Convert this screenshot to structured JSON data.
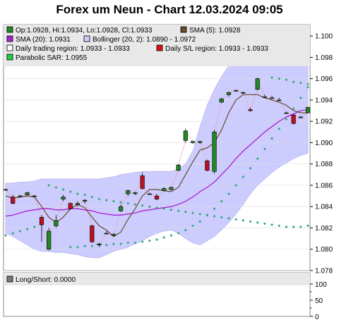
{
  "title": "Forex um Neun - Chart 12.03.2024 09:05",
  "legend": {
    "ohlc": "Op:1.0928, Hi:1.0934, Lo:1.0928, Cl:1.0933",
    "sma5": "SMA (5): 1.0928",
    "sma20": "SMA (20): 1.0931",
    "bollinger": "Bollinger (20, 2): 1.0890 - 1.0972",
    "daily_trading_region": "Daily trading region: 1.0933 - 1.0933",
    "daily_sl_region": "Daily S/L region: 1.0933 - 1.0933",
    "psar": "Parabolic SAR: 1.0955"
  },
  "colors": {
    "bull": "#228822",
    "bear": "#bb1122",
    "sma5": "#6b4a2e",
    "sma20": "#aa22cc",
    "bollinger_fill": "#ccccff",
    "psar": "#33aa77",
    "link": "#f0a0b0"
  },
  "lower_panel": {
    "legend": "Long/Short: 0.0000",
    "ticks": [
      "100",
      "50",
      "0"
    ]
  },
  "chart_data": {
    "type": "candlestick",
    "title": "Forex um Neun - Chart 12.03.2024 09:05",
    "ylim": [
      1.078,
      1.101
    ],
    "yticks": [
      "1.078",
      "1.080",
      "1.082",
      "1.084",
      "1.086",
      "1.088",
      "1.090",
      "1.092",
      "1.094",
      "1.096",
      "1.098",
      "1.100"
    ],
    "candles": [
      {
        "o": 1.0856,
        "h": 1.0857,
        "l": 1.0855,
        "c": 1.0856
      },
      {
        "o": 1.0849,
        "h": 1.0851,
        "l": 1.0842,
        "c": 1.0843
      },
      {
        "o": 1.0849,
        "h": 1.0851,
        "l": 1.0849,
        "c": 1.085
      },
      {
        "o": 1.0851,
        "h": 1.0854,
        "l": 1.085,
        "c": 1.0853
      },
      {
        "o": 1.085,
        "h": 1.0851,
        "l": 1.0849,
        "c": 1.085
      },
      {
        "o": 1.083,
        "h": 1.0832,
        "l": 1.0807,
        "c": 1.0823
      },
      {
        "o": 1.08,
        "h": 1.082,
        "l": 1.0799,
        "c": 1.0817
      },
      {
        "o": 1.0822,
        "h": 1.0832,
        "l": 1.082,
        "c": 1.0827
      },
      {
        "o": 1.0847,
        "h": 1.0851,
        "l": 1.0845,
        "c": 1.0849
      },
      {
        "o": 1.0843,
        "h": 1.0844,
        "l": 1.0837,
        "c": 1.0838
      },
      {
        "o": 1.0842,
        "h": 1.0845,
        "l": 1.084,
        "c": 1.0843
      },
      {
        "o": 1.0845,
        "h": 1.0847,
        "l": 1.0843,
        "c": 1.0846
      },
      {
        "o": 1.0822,
        "h": 1.0823,
        "l": 1.0806,
        "c": 1.0807
      },
      {
        "o": 1.0804,
        "h": 1.0806,
        "l": 1.0802,
        "c": 1.0805
      },
      {
        "o": 1.0815,
        "h": 1.0817,
        "l": 1.0814,
        "c": 1.0815
      },
      {
        "o": 1.0813,
        "h": 1.0815,
        "l": 1.0812,
        "c": 1.0814
      },
      {
        "o": 1.0836,
        "h": 1.0842,
        "l": 1.0835,
        "c": 1.084
      },
      {
        "o": 1.0852,
        "h": 1.0856,
        "l": 1.085,
        "c": 1.0855
      },
      {
        "o": 1.0852,
        "h": 1.0854,
        "l": 1.0851,
        "c": 1.0853
      },
      {
        "o": 1.0869,
        "h": 1.0872,
        "l": 1.0856,
        "c": 1.0857
      },
      {
        "o": 1.0852,
        "h": 1.0853,
        "l": 1.0851,
        "c": 1.0852
      },
      {
        "o": 1.085,
        "h": 1.0852,
        "l": 1.0846,
        "c": 1.0847
      },
      {
        "o": 1.0855,
        "h": 1.0858,
        "l": 1.0854,
        "c": 1.0857
      },
      {
        "o": 1.0856,
        "h": 1.0859,
        "l": 1.0855,
        "c": 1.0858
      },
      {
        "o": 1.0874,
        "h": 1.088,
        "l": 1.0873,
        "c": 1.0879
      },
      {
        "o": 1.0902,
        "h": 1.0913,
        "l": 1.09,
        "c": 1.0911
      },
      {
        "o": 1.09,
        "h": 1.0902,
        "l": 1.0899,
        "c": 1.0901
      },
      {
        "o": 1.09,
        "h": 1.0902,
        "l": 1.0899,
        "c": 1.0901
      },
      {
        "o": 1.0883,
        "h": 1.0884,
        "l": 1.0873,
        "c": 1.0874
      },
      {
        "o": 1.0873,
        "h": 1.0912,
        "l": 1.0871,
        "c": 1.091
      },
      {
        "o": 1.0938,
        "h": 1.0942,
        "l": 1.0937,
        "c": 1.0941
      },
      {
        "o": 1.0945,
        "h": 1.0948,
        "l": 1.0943,
        "c": 1.0947
      },
      {
        "o": 1.0949,
        "h": 1.095,
        "l": 1.0948,
        "c": 1.0949
      },
      {
        "o": 1.0947,
        "h": 1.0948,
        "l": 1.0946,
        "c": 1.0947
      },
      {
        "o": 1.0931,
        "h": 1.0933,
        "l": 1.0929,
        "c": 1.093
      },
      {
        "o": 1.095,
        "h": 1.0961,
        "l": 1.0949,
        "c": 1.096
      },
      {
        "o": 1.0943,
        "h": 1.0945,
        "l": 1.0942,
        "c": 1.0943
      },
      {
        "o": 1.0942,
        "h": 1.0944,
        "l": 1.0941,
        "c": 1.0942
      },
      {
        "o": 1.094,
        "h": 1.0942,
        "l": 1.0939,
        "c": 1.094
      },
      {
        "o": 1.0928,
        "h": 1.0929,
        "l": 1.0927,
        "c": 1.0928
      },
      {
        "o": 1.0926,
        "h": 1.0927,
        "l": 1.0917,
        "c": 1.0918
      },
      {
        "o": 1.0924,
        "h": 1.0925,
        "l": 1.0923,
        "c": 1.0924
      },
      {
        "o": 1.0928,
        "h": 1.0934,
        "l": 1.0928,
        "c": 1.0933
      }
    ],
    "sma5": [
      1.085,
      1.0848,
      1.0849,
      1.085,
      1.0849,
      1.084,
      1.083,
      1.0825,
      1.083,
      1.0838,
      1.0842,
      1.0839,
      1.083,
      1.0822,
      1.0818,
      1.0812,
      1.0816,
      1.0828,
      1.0838,
      1.085,
      1.0856,
      1.0856,
      1.0855,
      1.0854,
      1.0858,
      1.087,
      1.0882,
      1.0893,
      1.0895,
      1.09,
      1.0912,
      1.0928,
      1.094,
      1.0945,
      1.0945,
      1.0945,
      1.0942,
      1.094,
      1.0938,
      1.0935,
      1.093,
      1.0928,
      1.0928
    ],
    "sma20": [
      1.0831,
      1.0832,
      1.0834,
      1.0836,
      1.0837,
      1.0838,
      1.0838,
      1.0837,
      1.0837,
      1.0838,
      1.0838,
      1.0837,
      1.0836,
      1.0834,
      1.0833,
      1.0832,
      1.0832,
      1.0833,
      1.0834,
      1.0836,
      1.0837,
      1.0838,
      1.0839,
      1.084,
      1.0842,
      1.0845,
      1.0849,
      1.0854,
      1.0858,
      1.0863,
      1.087,
      1.0877,
      1.0885,
      1.0892,
      1.0898,
      1.0904,
      1.091,
      1.0915,
      1.092,
      1.0924,
      1.0927,
      1.093,
      1.0931
    ],
    "bollinger_upper": [
      1.0862,
      1.0862,
      1.0863,
      1.0863,
      1.0864,
      1.0866,
      1.0866,
      1.0866,
      1.0866,
      1.0866,
      1.0866,
      1.0866,
      1.0866,
      1.0866,
      1.0867,
      1.0868,
      1.087,
      1.0871,
      1.0872,
      1.0873,
      1.0873,
      1.0873,
      1.0873,
      1.0873,
      1.0875,
      1.088,
      1.0892,
      1.0915,
      1.0935,
      1.095,
      1.0962,
      1.0972,
      1.098,
      1.0983,
      1.0983,
      1.0982,
      1.098,
      1.0978,
      1.0976,
      1.0974,
      1.0973,
      1.0972,
      1.0972
    ],
    "bollinger_lower": [
      1.0815,
      1.0812,
      1.0808,
      1.0804,
      1.08,
      1.0798,
      1.0798,
      1.0797,
      1.0797,
      1.0796,
      1.0795,
      1.0793,
      1.0792,
      1.0792,
      1.0795,
      1.0798,
      1.08,
      1.0802,
      1.0805,
      1.0808,
      1.0812,
      1.0815,
      1.0817,
      1.0818,
      1.0815,
      1.081,
      1.0806,
      1.0804,
      1.0808,
      1.0812,
      1.0818,
      1.0825,
      1.0833,
      1.0842,
      1.0852,
      1.086,
      1.0866,
      1.0872,
      1.0877,
      1.0881,
      1.0885,
      1.0888,
      1.089
    ],
    "psar": [
      1.0813,
      1.0815,
      1.0817,
      1.0819,
      1.0821,
      1.0823,
      1.086,
      1.0858,
      1.0856,
      1.0854,
      1.0852,
      1.0851,
      1.0849,
      1.0847,
      1.0846,
      1.0845,
      1.0844,
      1.0843,
      1.0842,
      1.0841,
      1.084,
      1.0839,
      1.0838,
      1.0837,
      1.0836,
      1.0835,
      1.0834,
      1.0833,
      1.0832,
      1.0831,
      1.083,
      1.0829,
      1.0828,
      1.0827,
      1.0826,
      1.0825,
      1.0824,
      1.0823,
      1.0822,
      1.0821,
      1.0821,
      1.0821,
      1.0822
    ],
    "psar_up": [
      1.0802,
      1.0802,
      1.0803,
      1.0803,
      1.0804,
      1.0804,
      1.0805,
      1.0805,
      1.0806,
      1.0806,
      1.0807,
      1.0808,
      1.0809,
      1.0811,
      1.0813,
      1.0815,
      1.0818,
      1.0822,
      1.0826,
      1.0832,
      1.0838,
      1.0845,
      1.0852,
      1.086,
      1.0868,
      1.0876,
      1.0885,
      1.0894,
      1.0904,
      1.0913,
      1.0922,
      1.0932,
      1.0942,
      1.0952
    ],
    "psar_tail": [
      1.0961,
      1.096,
      1.0959,
      1.0957,
      1.0956,
      1.0955
    ]
  }
}
